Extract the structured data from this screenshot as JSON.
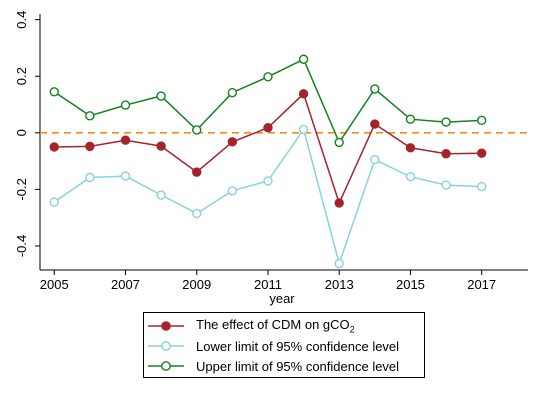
{
  "chart_data": {
    "type": "line",
    "title": "",
    "xlabel": "year",
    "ylabel": "",
    "x": [
      2005,
      2006,
      2007,
      2008,
      2009,
      2010,
      2011,
      2012,
      2013,
      2014,
      2015,
      2016,
      2017
    ],
    "xticks": [
      "2005",
      "2007",
      "2009",
      "2011",
      "2013",
      "2015",
      "2017"
    ],
    "xlim": [
      2004.6,
      2018.3
    ],
    "yticks": [
      "0.4",
      "0.2",
      "0",
      "-0.2",
      "-0.4"
    ],
    "ylim": [
      -0.485,
      0.42
    ],
    "series": [
      {
        "name": "The effect of CDM on gCO",
        "name_subscript": "2",
        "color": "#a5232c",
        "marker": "filled-circle",
        "values": [
          -0.05,
          -0.048,
          -0.026,
          -0.047,
          -0.139,
          -0.032,
          0.018,
          0.138,
          -0.248,
          0.031,
          -0.053,
          -0.074,
          -0.072
        ]
      },
      {
        "name": "Lower limit of 95% confidence level",
        "color": "#8ad0e0",
        "marker": "hollow-circle",
        "values": [
          -0.245,
          -0.158,
          -0.153,
          -0.22,
          -0.285,
          -0.205,
          -0.17,
          0.012,
          -0.462,
          -0.095,
          -0.155,
          -0.185,
          -0.19
        ]
      },
      {
        "name": "Upper limit of 95% confidence level",
        "color": "#13831e",
        "marker": "hollow-circle",
        "values": [
          0.145,
          0.06,
          0.098,
          0.13,
          0.01,
          0.142,
          0.198,
          0.26,
          -0.034,
          0.155,
          0.048,
          0.038,
          0.044
        ]
      }
    ],
    "reference_line": {
      "y": 0,
      "color": "#f28c1b",
      "style": "dashed"
    },
    "grid": false,
    "legend_position": "bottom"
  }
}
